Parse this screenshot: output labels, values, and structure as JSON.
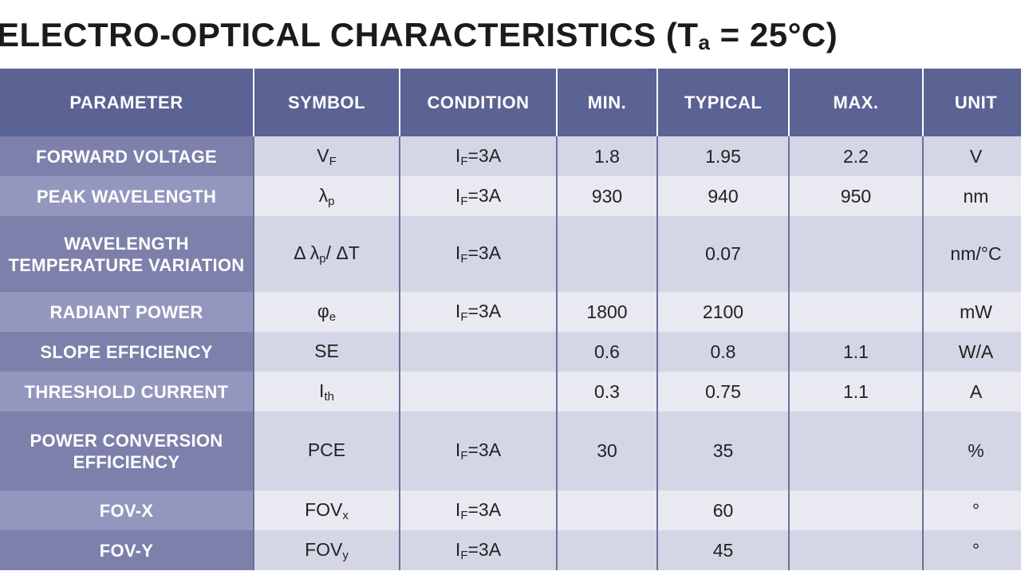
{
  "title": {
    "main": "ELECTRO-OPTICAL CHARACTERISTICS (T",
    "sub": "a",
    "rest": " = 25°C)"
  },
  "headers": [
    "PARAMETER",
    "SYMBOL",
    "CONDITION",
    "MIN.",
    "TYPICAL",
    "MAX.",
    "UNIT"
  ],
  "rows": [
    {
      "parameter": "FORWARD VOLTAGE",
      "symbol": "V",
      "symbol_sub": "F",
      "cond": "I",
      "cond_sub": "F",
      "cond_rest": "=3A",
      "min": "1.8",
      "typ": "1.95",
      "max": "2.2",
      "unit": "V"
    },
    {
      "parameter": "PEAK WAVELENGTH",
      "symbol": "λ",
      "symbol_sub": "p",
      "cond": "I",
      "cond_sub": "F",
      "cond_rest": "=3A",
      "min": "930",
      "typ": "940",
      "max": "950",
      "unit": "nm"
    },
    {
      "parameter": "WAVELENGTH TEMPERATURE VARIATION",
      "symbol": "Δ λ",
      "symbol_sub": "p",
      "symbol_rest": "/ ΔT",
      "cond": "I",
      "cond_sub": "F",
      "cond_rest": "=3A",
      "min": "",
      "typ": "0.07",
      "max": "",
      "unit": "nm/°C"
    },
    {
      "parameter": "RADIANT POWER",
      "symbol": "φ",
      "symbol_sub": "e",
      "cond": "I",
      "cond_sub": "F",
      "cond_rest": "=3A",
      "min": "1800",
      "typ": "2100",
      "max": "",
      "unit": "mW"
    },
    {
      "parameter": "SLOPE EFFICIENCY",
      "symbol": "SE",
      "symbol_sub": "",
      "cond": "",
      "cond_sub": "",
      "cond_rest": "",
      "min": "0.6",
      "typ": "0.8",
      "max": "1.1",
      "unit": "W/A"
    },
    {
      "parameter": "THRESHOLD CURRENT",
      "symbol": "I",
      "symbol_sub": "th",
      "cond": "",
      "cond_sub": "",
      "cond_rest": "",
      "min": "0.3",
      "typ": "0.75",
      "max": "1.1",
      "unit": "A"
    },
    {
      "parameter": "POWER CONVERSION EFFICIENCY",
      "symbol": "PCE",
      "symbol_sub": "",
      "cond": "I",
      "cond_sub": "F",
      "cond_rest": "=3A",
      "min": "30",
      "typ": "35",
      "max": "",
      "unit": "%"
    },
    {
      "parameter": "FOV-X",
      "symbol": "FOV",
      "symbol_sub": "x",
      "cond": "I",
      "cond_sub": "F",
      "cond_rest": "=3A",
      "min": "",
      "typ": "60",
      "max": "",
      "unit": "°"
    },
    {
      "parameter": "FOV-Y",
      "symbol": "FOV",
      "symbol_sub": "y",
      "cond": "I",
      "cond_sub": "F",
      "cond_rest": "=3A",
      "min": "",
      "typ": "45",
      "max": "",
      "unit": "°"
    }
  ]
}
